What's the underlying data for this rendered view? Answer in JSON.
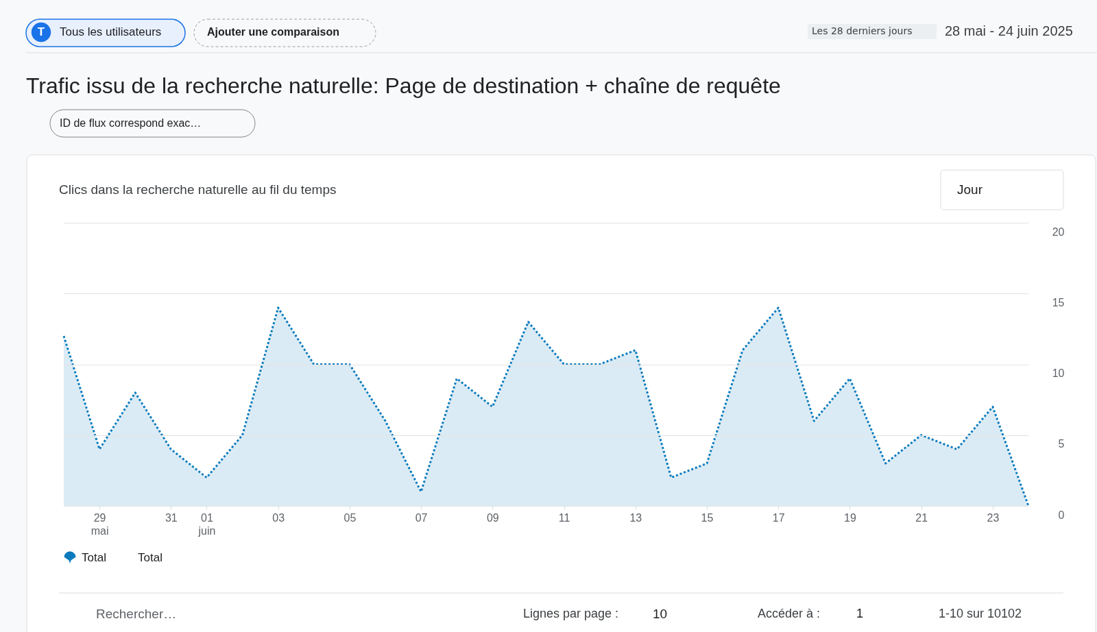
{
  "chart_data": {
    "type": "area",
    "title": "Trafic issu de la recherche naturelle: Page de destination + chaîne de requête",
    "subtitle": "Clics dans la recherche naturelle au fil du temps",
    "x": [
      "2025-05-28",
      "2025-05-29",
      "2025-05-30",
      "2025-05-31",
      "2025-06-01",
      "2025-06-02",
      "2025-06-03",
      "2025-06-04",
      "2025-06-05",
      "2025-06-06",
      "2025-06-07",
      "2025-06-08",
      "2025-06-09",
      "2025-06-10",
      "2025-06-11",
      "2025-06-12",
      "2025-06-13",
      "2025-06-14",
      "2025-06-15",
      "2025-06-16",
      "2025-06-17",
      "2025-06-18",
      "2025-06-19",
      "2025-06-20",
      "2025-06-21",
      "2025-06-22",
      "2025-06-23",
      "2025-06-24"
    ],
    "series": [
      {
        "name": "Total",
        "color": "#0b7bbd",
        "values": [
          12,
          4,
          8,
          4,
          2,
          5,
          14,
          10,
          10,
          6,
          1,
          9,
          7,
          13,
          10,
          10,
          11,
          2,
          3,
          11,
          14,
          6,
          9,
          3,
          5,
          4,
          7,
          0
        ]
      }
    ],
    "xlim": [
      "2025-05-28",
      "2025-06-24"
    ],
    "xticks": [
      {
        "value": "2025-05-29",
        "label": "29 mai"
      },
      {
        "value": "2025-05-31",
        "label": "31"
      },
      {
        "value": "2025-06-01",
        "label": "01 juin"
      },
      {
        "value": "2025-06-03",
        "label": "03"
      },
      {
        "value": "2025-06-05",
        "label": "05"
      },
      {
        "value": "2025-06-07",
        "label": "07"
      },
      {
        "value": "2025-06-09",
        "label": "09"
      },
      {
        "value": "2025-06-11",
        "label": "11"
      },
      {
        "value": "2025-06-13",
        "label": "13"
      },
      {
        "value": "2025-06-15",
        "label": "15"
      },
      {
        "value": "2025-06-17",
        "label": "17"
      },
      {
        "value": "2025-06-19",
        "label": "19"
      },
      {
        "value": "2025-06-21",
        "label": "21"
      },
      {
        "value": "2025-06-23",
        "label": "23"
      }
    ],
    "ylim": [
      0,
      20
    ],
    "yticks": [
      0,
      5,
      10,
      15,
      20
    ],
    "grid": "y",
    "legend": "bottom left",
    "line_style": "dotted",
    "annotations": [
      "T",
      "Tous les utilisateurs",
      "Ajouter une comparaison",
      "Les 28 derniers jours",
      "28 mai - 24 juin 2025",
      "ID de flux correspond exac…",
      "Jour",
      "Rechercher…",
      "Lignes par page :",
      "10",
      "Accéder à :",
      "1",
      "1-10 sur 10102",
      "Total"
    ]
  }
}
